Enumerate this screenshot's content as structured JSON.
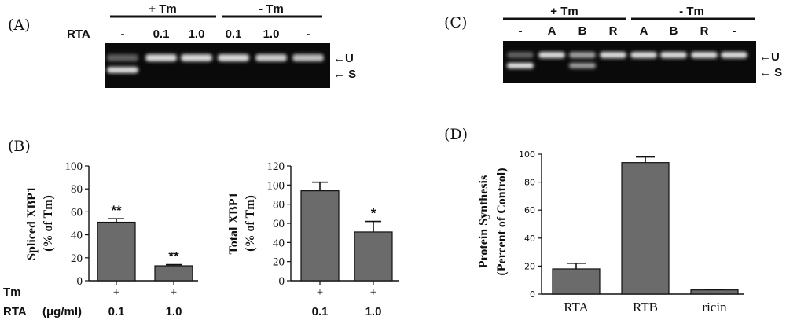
{
  "panels": {
    "A": {
      "label": "(A)",
      "group_plus": "+ Tm",
      "group_minus": "- Tm",
      "row_label": "RTA",
      "lanes": [
        "-",
        "0.1",
        "1.0",
        "0.1",
        "1.0",
        "-"
      ],
      "marker_u": "←U",
      "marker_s": "← S"
    },
    "C": {
      "label": "(C)",
      "group_plus": "+ Tm",
      "group_minus": "- Tm",
      "lanes": [
        "-",
        "A",
        "B",
        "R",
        "A",
        "B",
        "R",
        "-"
      ],
      "marker_u": "←U",
      "marker_s": "← S"
    },
    "B": {
      "label": "(B)",
      "row_tm": "Tm",
      "row_rta": "RTA",
      "row_unit": "(μg/ml)"
    },
    "D": {
      "label": "(D)"
    }
  },
  "chart_data": [
    {
      "id": "B-left",
      "type": "bar",
      "categories": [
        "0.1",
        "1.0"
      ],
      "tm": [
        "+",
        "+"
      ],
      "values": [
        51,
        13
      ],
      "errors": [
        3,
        1
      ],
      "annotations": [
        "**",
        "**"
      ],
      "ylabel_line1": "Spliced XBP1",
      "ylabel_line2": "(% of Tm)",
      "yticks": [
        "0",
        "20",
        "40",
        "60",
        "80",
        "100"
      ],
      "ylim": [
        0,
        100
      ],
      "color": "#6b6b6b"
    },
    {
      "id": "B-right",
      "type": "bar",
      "categories": [
        "0.1",
        "1.0"
      ],
      "tm": [
        "+",
        "+"
      ],
      "values": [
        94,
        51
      ],
      "errors": [
        9,
        11
      ],
      "annotations": [
        "",
        "*"
      ],
      "ylabel_line1": "Total XBP1",
      "ylabel_line2": "(% of Tm)",
      "yticks": [
        "0",
        "20",
        "40",
        "60",
        "80",
        "100",
        "120"
      ],
      "ylim": [
        0,
        120
      ],
      "color": "#6b6b6b"
    },
    {
      "id": "D",
      "type": "bar",
      "categories": [
        "RTA",
        "RTB",
        "ricin"
      ],
      "values": [
        18,
        94,
        3
      ],
      "errors": [
        4,
        4,
        0.5
      ],
      "ylabel_line1": "Protein Synthesis",
      "ylabel_line2": "(Percent of Control)",
      "yticks": [
        "0",
        "20",
        "40",
        "60",
        "80",
        "100"
      ],
      "ylim": [
        0,
        100
      ],
      "color": "#6b6b6b"
    }
  ]
}
